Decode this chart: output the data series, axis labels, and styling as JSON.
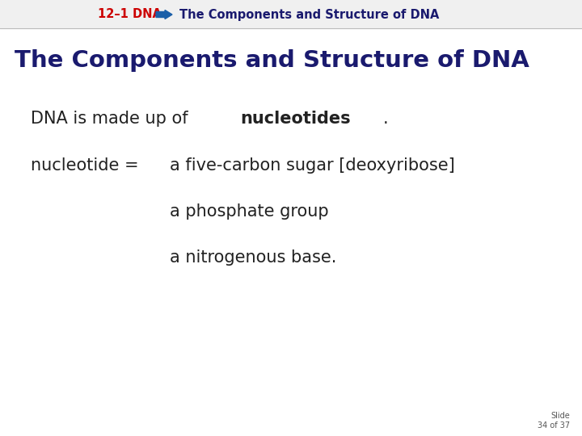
{
  "bg_color": "#ffffff",
  "header_label1": "12–1 DNA",
  "header_label1_color": "#cc0000",
  "header_arrow_color": "#1a5fa8",
  "header_label2": "The Components and Structure of DNA",
  "header_label2_color": "#1a1a6e",
  "title": "The Components and Structure of DNA",
  "title_color": "#1a1a6e",
  "line1_normal": "DNA is made up of ",
  "line1_bold": "nucleotides",
  "line1_end": ".",
  "line2_left": "nucleotide =",
  "line2_right": "a five-carbon sugar [deoxyribose]",
  "line3": "a phosphate group",
  "line4": "a nitrogenous base.",
  "slide_label": "Slide\n34 of 37",
  "text_color": "#222222",
  "font_family": "sans-serif"
}
